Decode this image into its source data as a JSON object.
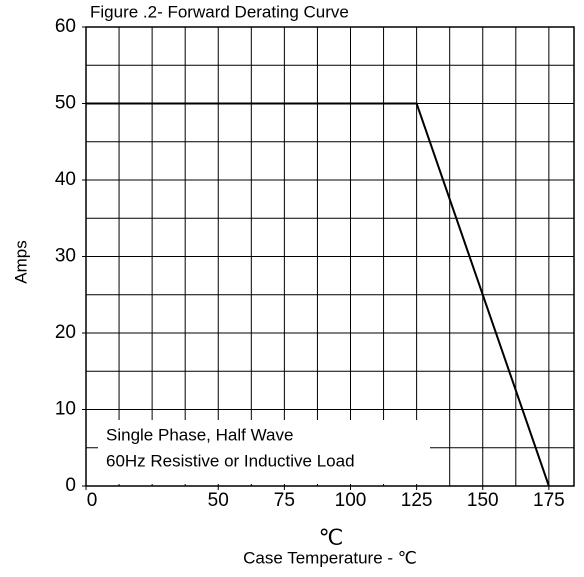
{
  "chart_data": {
    "type": "line",
    "title": "Figure .2- Forward Derating Curve",
    "x_label": "Case Temperature - ℃",
    "x_unit_symbol": "℃",
    "y_label": "Amps",
    "annotation": [
      "Single Phase, Half Wave",
      "60Hz Resistive or Inductive Load"
    ],
    "x": [
      0,
      125,
      175
    ],
    "series": [
      {
        "name": null,
        "color": "#000000",
        "values": [
          50,
          50,
          0
        ]
      }
    ],
    "xlim": [
      0,
      184.5
    ],
    "ylim": [
      0,
      60
    ],
    "xticks": [
      0,
      50,
      75,
      100,
      125,
      150,
      175
    ],
    "yticks": [
      0,
      10,
      20,
      30,
      40,
      50,
      60
    ],
    "xgrid": [
      12.5,
      25,
      37.5,
      50,
      62.5,
      75,
      87.5,
      100,
      112.5,
      125,
      137.5,
      150,
      162.5,
      175
    ],
    "ygrid": [
      5,
      10,
      15,
      20,
      25,
      30,
      35,
      40,
      45,
      50,
      55
    ],
    "grid": true
  }
}
